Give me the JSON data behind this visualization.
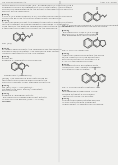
{
  "bg_color": "#e8e8e8",
  "page_bg": "#f5f5f5",
  "text_color": "#555555",
  "line_color": "#444444",
  "struct_color": "#444444",
  "header_left": "US 20080003259 A1",
  "header_right": "Aug. 12, 2008",
  "page_num": "3"
}
